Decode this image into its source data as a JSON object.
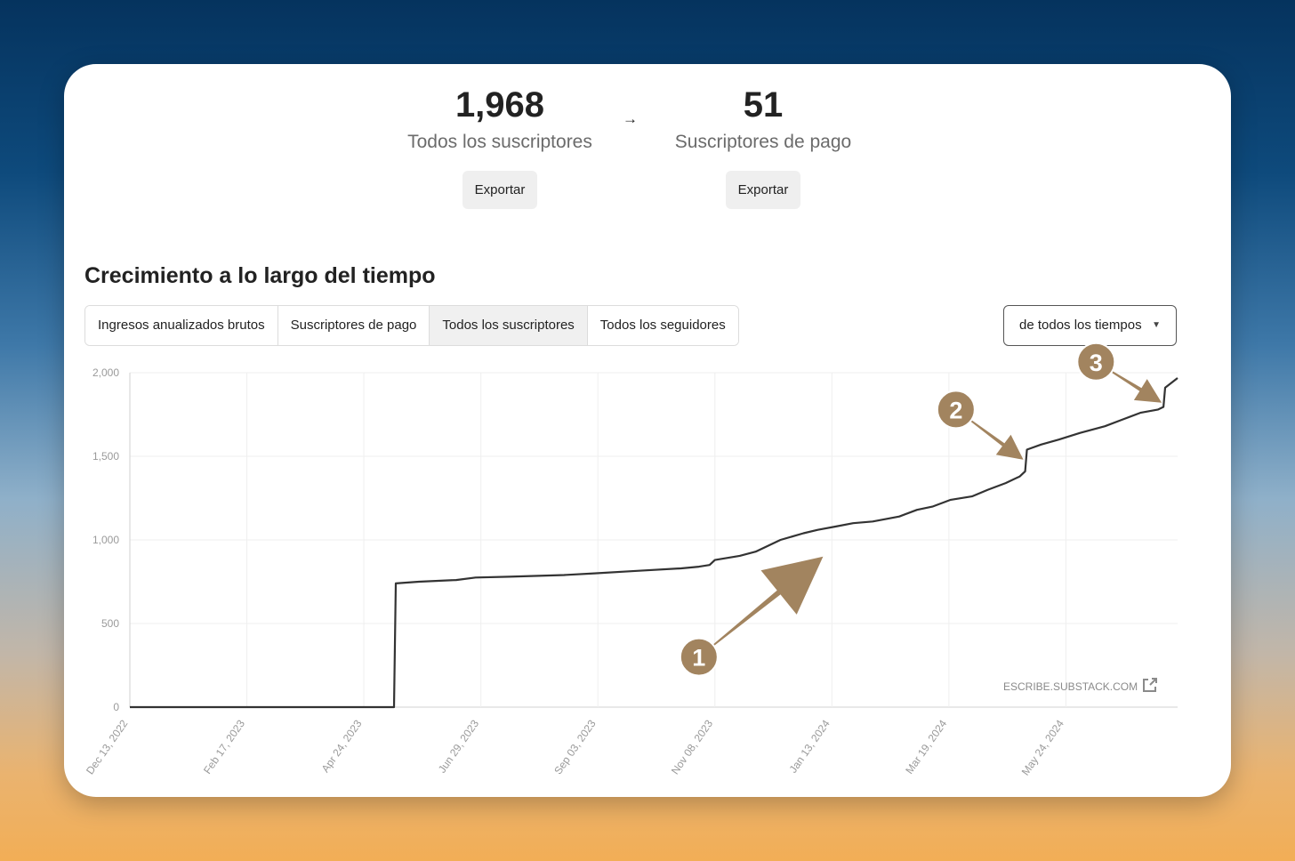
{
  "stats": {
    "all": {
      "value": "1,968",
      "label": "Todos los suscriptores",
      "export_label": "Exportar"
    },
    "arrow": "→",
    "paid": {
      "value": "51",
      "label": "Suscriptores de pago",
      "export_label": "Exportar"
    }
  },
  "section_title": "Crecimiento a lo largo del tiempo",
  "tabs": [
    {
      "label": "Ingresos anualizados brutos"
    },
    {
      "label": "Suscriptores de pago"
    },
    {
      "label": "Todos los suscriptores",
      "active": true
    },
    {
      "label": "Todos los seguidores"
    }
  ],
  "range_select": {
    "value": "de todos los tiempos"
  },
  "watermark": "ESCRIBE.SUBSTACK.COM",
  "colors": {
    "line": "#333333",
    "annotation": "#a2845f",
    "grid": "#efefef"
  },
  "chart_data": {
    "type": "line",
    "x_tick_labels": [
      "Dec 13, 2022",
      "Feb 17, 2023",
      "Apr 24, 2023",
      "Jun 29, 2023",
      "Sep 03, 2023",
      "Nov 08, 2023",
      "Jan 13, 2024",
      "Mar 19, 2024",
      "May 24, 2024"
    ],
    "y_ticks": [
      0,
      500,
      1000,
      1500,
      2000
    ],
    "y_tick_labels": [
      "0",
      "500",
      "1,000",
      "1,500",
      "2,000"
    ],
    "xlim": [
      "2022-12-13",
      "2024-07-26"
    ],
    "ylim": [
      0,
      2000
    ],
    "grid": true,
    "series": [
      {
        "points": [
          [
            "2022-12-13",
            0
          ],
          [
            "2023-05-11",
            0
          ],
          [
            "2023-05-12",
            740
          ],
          [
            "2023-05-25",
            750
          ],
          [
            "2023-06-15",
            760
          ],
          [
            "2023-06-26",
            775
          ],
          [
            "2023-07-15",
            780
          ],
          [
            "2023-08-15",
            790
          ],
          [
            "2023-09-01",
            800
          ],
          [
            "2023-09-25",
            815
          ],
          [
            "2023-10-20",
            830
          ],
          [
            "2023-10-30",
            840
          ],
          [
            "2023-11-05",
            850
          ],
          [
            "2023-11-08",
            880
          ],
          [
            "2023-11-22",
            905
          ],
          [
            "2023-12-01",
            930
          ],
          [
            "2023-12-15",
            1000
          ],
          [
            "2023-12-28",
            1040
          ],
          [
            "2024-01-05",
            1060
          ],
          [
            "2024-01-15",
            1080
          ],
          [
            "2024-01-25",
            1100
          ],
          [
            "2024-02-05",
            1110
          ],
          [
            "2024-02-20",
            1140
          ],
          [
            "2024-03-01",
            1180
          ],
          [
            "2024-03-10",
            1200
          ],
          [
            "2024-03-20",
            1240
          ],
          [
            "2024-04-01",
            1260
          ],
          [
            "2024-04-10",
            1300
          ],
          [
            "2024-04-20",
            1340
          ],
          [
            "2024-04-28",
            1380
          ],
          [
            "2024-05-01",
            1410
          ],
          [
            "2024-05-02",
            1540
          ],
          [
            "2024-05-10",
            1570
          ],
          [
            "2024-05-20",
            1600
          ],
          [
            "2024-06-01",
            1640
          ],
          [
            "2024-06-15",
            1680
          ],
          [
            "2024-06-25",
            1720
          ],
          [
            "2024-07-05",
            1760
          ],
          [
            "2024-07-15",
            1780
          ],
          [
            "2024-07-18",
            1795
          ],
          [
            "2024-07-19",
            1910
          ],
          [
            "2024-07-26",
            1968
          ]
        ]
      }
    ],
    "annotations": [
      {
        "label": "1",
        "at": [
          "2023-10-30",
          300
        ],
        "points_to": [
          "2024-01-08",
          900
        ]
      },
      {
        "label": "2",
        "at": [
          "2024-03-23",
          1780
        ],
        "points_to": [
          "2024-04-30",
          1480
        ]
      },
      {
        "label": "3",
        "at": [
          "2024-06-10",
          2065
        ],
        "points_to": [
          "2024-07-17",
          1820
        ]
      }
    ]
  }
}
